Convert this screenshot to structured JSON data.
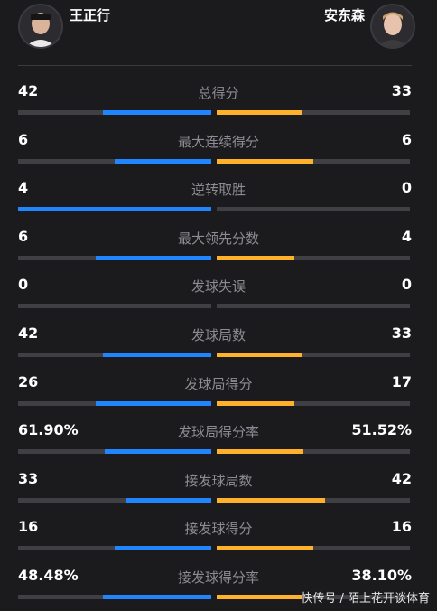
{
  "players": {
    "left": {
      "name": "王正行"
    },
    "right": {
      "name": "安东森"
    }
  },
  "stats": [
    {
      "label": "总得分",
      "left": "42",
      "right": "33",
      "left_fill": 0.56,
      "right_fill": 0.44
    },
    {
      "label": "最大连续得分",
      "left": "6",
      "right": "6",
      "left_fill": 0.5,
      "right_fill": 0.5
    },
    {
      "label": "逆转取胜",
      "left": "4",
      "right": "0",
      "left_fill": 1.0,
      "right_fill": 0.0
    },
    {
      "label": "最大领先分数",
      "left": "6",
      "right": "4",
      "left_fill": 0.6,
      "right_fill": 0.4
    },
    {
      "label": "发球失误",
      "left": "0",
      "right": "0",
      "left_fill": 0.0,
      "right_fill": 0.0
    },
    {
      "label": "发球局数",
      "left": "42",
      "right": "33",
      "left_fill": 0.56,
      "right_fill": 0.44
    },
    {
      "label": "发球局得分",
      "left": "26",
      "right": "17",
      "left_fill": 0.6,
      "right_fill": 0.4
    },
    {
      "label": "发球局得分率",
      "left": "61.90%",
      "right": "51.52%",
      "left_fill": 0.55,
      "right_fill": 0.45
    },
    {
      "label": "接发球局数",
      "left": "33",
      "right": "42",
      "left_fill": 0.44,
      "right_fill": 0.56
    },
    {
      "label": "接发球得分",
      "left": "16",
      "right": "16",
      "left_fill": 0.5,
      "right_fill": 0.5
    },
    {
      "label": "接发球得分率",
      "left": "48.48%",
      "right": "38.10%",
      "left_fill": 0.56,
      "right_fill": 0.44
    }
  ],
  "colors": {
    "left_bar": "#1f86ff",
    "right_bar": "#ffb12b",
    "track": "#3f3f44"
  },
  "watermark": "快传号 / 陌上花开谈体育"
}
